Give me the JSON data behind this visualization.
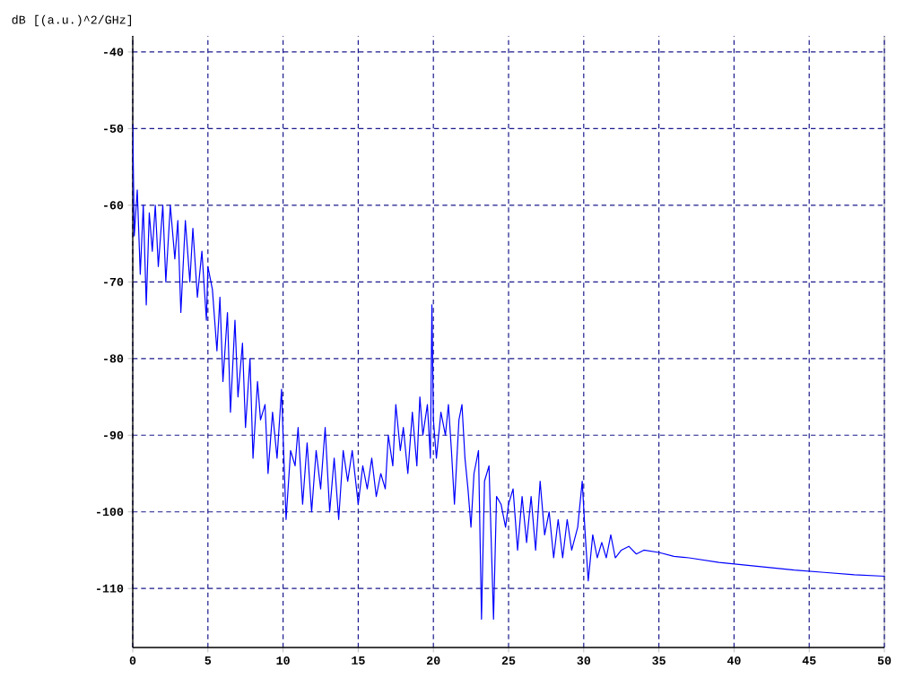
{
  "chart_data": {
    "type": "line",
    "ylabel": "dB [(a.u.)^2/GHz]",
    "x": [
      0,
      0.1,
      0.3,
      0.5,
      0.7,
      0.9,
      1.1,
      1.3,
      1.5,
      1.7,
      2.0,
      2.2,
      2.5,
      2.8,
      3.0,
      3.2,
      3.5,
      3.8,
      4.0,
      4.3,
      4.6,
      4.9,
      5.0,
      5.3,
      5.6,
      5.8,
      6.0,
      6.3,
      6.5,
      6.8,
      7.0,
      7.3,
      7.5,
      7.8,
      8.0,
      8.3,
      8.5,
      8.8,
      9.0,
      9.3,
      9.6,
      9.9,
      10.0,
      10.2,
      10.5,
      10.8,
      11.0,
      11.3,
      11.6,
      11.9,
      12.2,
      12.5,
      12.8,
      13.1,
      13.4,
      13.7,
      14.0,
      14.3,
      14.6,
      15.0,
      15.3,
      15.6,
      15.9,
      16.2,
      16.5,
      16.8,
      17.0,
      17.3,
      17.5,
      17.8,
      18.0,
      18.3,
      18.6,
      18.9,
      19.1,
      19.3,
      19.6,
      19.8,
      19.9,
      20.0,
      20.2,
      20.5,
      20.8,
      21.0,
      21.2,
      21.4,
      21.7,
      21.9,
      22.1,
      22.3,
      22.5,
      22.7,
      23.0,
      23.2,
      23.4,
      23.7,
      24.0,
      24.2,
      24.5,
      24.8,
      25.0,
      25.3,
      25.6,
      25.9,
      26.2,
      26.5,
      26.8,
      27.1,
      27.4,
      27.7,
      28.0,
      28.3,
      28.6,
      28.9,
      29.2,
      29.6,
      29.9,
      30.1,
      30.3,
      30.6,
      30.9,
      31.2,
      31.5,
      31.8,
      32.1,
      32.5,
      33.0,
      33.5,
      34,
      35,
      36,
      37,
      38,
      39,
      40,
      42,
      44,
      46,
      48,
      50
    ],
    "series": [
      {
        "color": "#0000ff",
        "values": [
          -49.5,
          -64,
          -58,
          -69,
          -60,
          -73,
          -61,
          -66,
          -60,
          -68,
          -60,
          -70,
          -60,
          -67,
          -62,
          -74,
          -62,
          -70,
          -63,
          -72,
          -66,
          -75,
          -68,
          -71,
          -79,
          -72,
          -83,
          -74,
          -87,
          -75,
          -85,
          -78,
          -89,
          -80,
          -93,
          -83,
          -88,
          -86,
          -95,
          -87,
          -93,
          -84,
          -90,
          -101,
          -92,
          -94,
          -89,
          -99,
          -91,
          -100,
          -92,
          -97,
          -89,
          -100,
          -93,
          -101,
          -92,
          -96,
          -92,
          -99,
          -94,
          -97,
          -93,
          -98,
          -95,
          -97,
          -90,
          -94,
          -86,
          -92,
          -89,
          -95,
          -87,
          -94,
          -85,
          -90,
          -86,
          -93,
          -73,
          -88,
          -93,
          -87,
          -90,
          -86,
          -92,
          -99,
          -88,
          -86,
          -93,
          -97,
          -102,
          -95,
          -92,
          -114,
          -96,
          -94,
          -114,
          -98,
          -99,
          -102,
          -99,
          -97,
          -105,
          -98,
          -104,
          -98,
          -105,
          -96,
          -103,
          -100,
          -106,
          -101,
          -106,
          -101,
          -105,
          -102,
          -96,
          -103,
          -109,
          -103,
          -106,
          -104,
          -106,
          -103,
          -106,
          -105,
          -104.5,
          -105.5,
          -105,
          -105.3,
          -105.8,
          -106,
          -106.3,
          -106.6,
          -106.8,
          -107.2,
          -107.6,
          -107.9,
          -108.2,
          -108.4
        ]
      }
    ],
    "xlim": [
      0,
      50
    ],
    "ylim": [
      -117.7,
      -37.9
    ],
    "xticks": [
      0,
      5,
      10,
      15,
      20,
      25,
      30,
      35,
      40,
      45,
      50
    ],
    "yticks": [
      -110,
      -100,
      -90,
      -80,
      -70,
      -60,
      -50,
      -40
    ],
    "grid": true,
    "marker": "none",
    "line_style": "solid"
  }
}
